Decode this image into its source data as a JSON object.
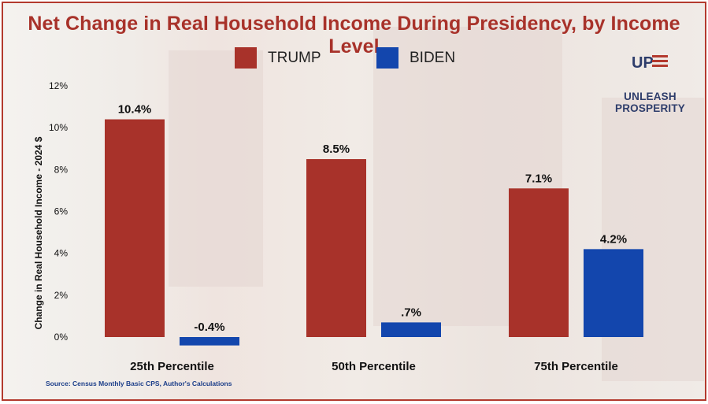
{
  "title": "Net Change in Real Household Income During Presidency, by Income Level",
  "legend": [
    {
      "label": "TRUMP",
      "color": "#a8322a"
    },
    {
      "label": "BIDEN",
      "color": "#1346ad"
    }
  ],
  "logo": {
    "mark": "UP",
    "text": "UNLEASH PROSPERITY"
  },
  "source": "Source: Census Monthly Basic CPS, Author's Calculations",
  "chart_data": {
    "type": "bar",
    "title": "Net Change in Real Household Income During Presidency, by Income Level",
    "xlabel": "",
    "ylabel": "Change in Real Household Income - 2024 $",
    "ylim": [
      0,
      12
    ],
    "yticks": [
      0,
      2,
      4,
      6,
      8,
      10,
      12
    ],
    "ytick_labels": [
      "0%",
      "2%",
      "4%",
      "6%",
      "8%",
      "10%",
      "12%"
    ],
    "categories": [
      "25th Percentile",
      "50th Percentile",
      "75th  Percentile"
    ],
    "series": [
      {
        "name": "TRUMP",
        "color": "#a8322a",
        "values": [
          10.4,
          8.5,
          7.1
        ],
        "labels": [
          "10.4%",
          "8.5%",
          "7.1%"
        ]
      },
      {
        "name": "BIDEN",
        "color": "#1346ad",
        "values": [
          -0.4,
          0.7,
          4.2
        ],
        "labels": [
          "-0.4%",
          ".7%",
          "4.2%"
        ]
      }
    ]
  }
}
